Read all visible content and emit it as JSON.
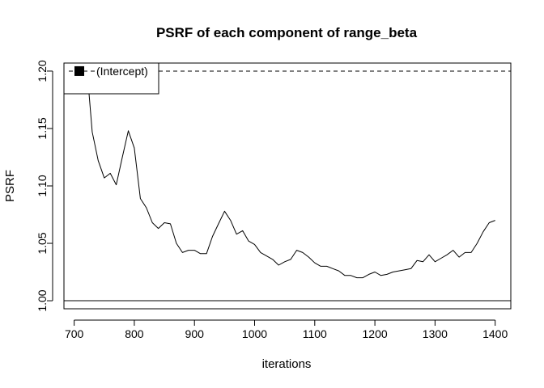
{
  "chart_data": {
    "type": "line",
    "title": "PSRF of each component of range_beta",
    "xlabel": "iterations",
    "ylabel": "PSRF",
    "xlim": [
      683,
      1426
    ],
    "ylim": [
      0.993,
      1.207
    ],
    "x_ticks": [
      700,
      800,
      900,
      1000,
      1100,
      1200,
      1300,
      1400
    ],
    "x_tick_labels": [
      "700",
      "800",
      "900",
      "1000",
      "1100",
      "1200",
      "1300",
      "1400"
    ],
    "y_ticks": [
      1.0,
      1.05,
      1.1,
      1.15,
      1.2
    ],
    "y_tick_labels": [
      "1.00",
      "1.05",
      "1.10",
      "1.15",
      "1.20"
    ],
    "reference_lines": [
      {
        "y": 1.2,
        "style": "dashed"
      },
      {
        "y": 1.0,
        "style": "solid"
      }
    ],
    "legend": {
      "position": "top-left",
      "entries": [
        "(Intercept)"
      ]
    },
    "series": [
      {
        "name": "(Intercept)",
        "color": "#000000",
        "x": [
          710,
          720,
          730,
          740,
          750,
          760,
          770,
          780,
          790,
          800,
          810,
          820,
          830,
          840,
          850,
          860,
          870,
          880,
          890,
          900,
          910,
          920,
          930,
          940,
          950,
          960,
          970,
          980,
          990,
          1000,
          1010,
          1020,
          1030,
          1040,
          1050,
          1060,
          1070,
          1080,
          1090,
          1100,
          1110,
          1120,
          1130,
          1140,
          1150,
          1160,
          1170,
          1180,
          1190,
          1200,
          1210,
          1220,
          1230,
          1240,
          1250,
          1260,
          1270,
          1280,
          1290,
          1300,
          1310,
          1320,
          1330,
          1340,
          1350,
          1360,
          1370,
          1380,
          1390,
          1400
        ],
        "y": [
          1.25,
          1.21,
          1.147,
          1.122,
          1.107,
          1.111,
          1.101,
          1.125,
          1.148,
          1.133,
          1.089,
          1.081,
          1.068,
          1.063,
          1.068,
          1.067,
          1.05,
          1.042,
          1.044,
          1.044,
          1.041,
          1.041,
          1.056,
          1.067,
          1.078,
          1.07,
          1.058,
          1.061,
          1.052,
          1.049,
          1.042,
          1.039,
          1.036,
          1.031,
          1.034,
          1.036,
          1.044,
          1.042,
          1.038,
          1.033,
          1.03,
          1.03,
          1.028,
          1.026,
          1.022,
          1.022,
          1.02,
          1.02,
          1.023,
          1.025,
          1.022,
          1.023,
          1.025,
          1.026,
          1.027,
          1.028,
          1.035,
          1.034,
          1.04,
          1.034,
          1.037,
          1.04,
          1.044,
          1.038,
          1.042,
          1.042,
          1.05,
          1.06,
          1.068,
          1.07
        ]
      }
    ]
  }
}
